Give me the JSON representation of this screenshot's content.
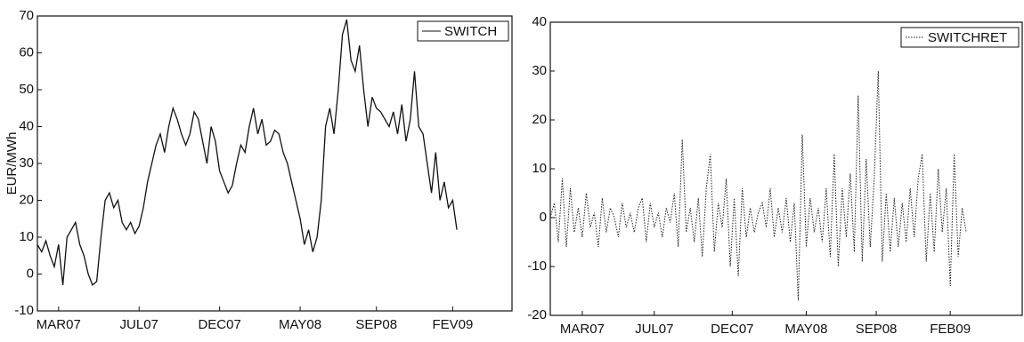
{
  "chart_data": [
    {
      "type": "line",
      "ylabel": "EUR/MWh",
      "legend": "upper right",
      "grid": false,
      "xlim": [
        0,
        112
      ],
      "xticks": [
        {
          "value": 5,
          "label": "MAR07"
        },
        {
          "value": 24,
          "label": "JUL07"
        },
        {
          "value": 43,
          "label": "DEC07"
        },
        {
          "value": 62,
          "label": "MAY08"
        },
        {
          "value": 80,
          "label": "SEP08"
        },
        {
          "value": 98,
          "label": "FEV09"
        }
      ],
      "ylim": [
        -10,
        70
      ],
      "yticks": [
        -10,
        0,
        10,
        20,
        30,
        40,
        50,
        60,
        70
      ],
      "x": [
        0,
        1,
        2,
        3,
        4,
        5,
        6,
        7,
        8,
        9,
        10,
        11,
        12,
        13,
        14,
        15,
        16,
        17,
        18,
        19,
        20,
        21,
        22,
        23,
        24,
        25,
        26,
        27,
        28,
        29,
        30,
        31,
        32,
        33,
        34,
        35,
        36,
        37,
        38,
        39,
        40,
        41,
        42,
        43,
        44,
        45,
        46,
        47,
        48,
        49,
        50,
        51,
        52,
        53,
        54,
        55,
        56,
        57,
        58,
        59,
        60,
        61,
        62,
        63,
        64,
        65,
        66,
        67,
        68,
        69,
        70,
        71,
        72,
        73,
        74,
        75,
        76,
        77,
        78,
        79,
        80,
        81,
        82,
        83,
        84,
        85,
        86,
        87,
        88,
        89,
        90,
        91,
        92,
        93,
        94,
        95,
        96,
        97,
        98,
        99
      ],
      "series": [
        {
          "name": "SWITCH",
          "color": "#111111",
          "linestyle": "solid",
          "values": [
            8,
            6,
            9,
            5,
            2,
            8,
            -3,
            10,
            12,
            14,
            8,
            5,
            0,
            -3,
            -2,
            10,
            20,
            22,
            18,
            20,
            14,
            12,
            14,
            11,
            13,
            18,
            25,
            30,
            35,
            38,
            33,
            40,
            45,
            42,
            38,
            35,
            38,
            44,
            42,
            36,
            30,
            40,
            36,
            28,
            25,
            22,
            24,
            30,
            35,
            33,
            40,
            45,
            38,
            42,
            35,
            36,
            39,
            38,
            33,
            30,
            25,
            20,
            15,
            8,
            12,
            6,
            10,
            20,
            40,
            45,
            38,
            50,
            65,
            69,
            58,
            55,
            62,
            50,
            40,
            48,
            45,
            44,
            42,
            40,
            44,
            38,
            46,
            36,
            42,
            55,
            40,
            38,
            30,
            22,
            33,
            20,
            25,
            18,
            20,
            12
          ]
        }
      ]
    },
    {
      "type": "line",
      "legend": "upper right",
      "grid": false,
      "xlim": [
        0,
        118
      ],
      "xticks": [
        {
          "value": 8,
          "label": "MAR07"
        },
        {
          "value": 26,
          "label": "JUL07"
        },
        {
          "value": 45.5,
          "label": "DEC07"
        },
        {
          "value": 64,
          "label": "MAY08"
        },
        {
          "value": 81.5,
          "label": "SEP08"
        },
        {
          "value": 100,
          "label": "FEB09"
        }
      ],
      "ylim": [
        -20,
        40
      ],
      "yticks": [
        -20,
        -10,
        0,
        10,
        20,
        30,
        40
      ],
      "x": [
        0,
        1,
        2,
        3,
        4,
        5,
        6,
        7,
        8,
        9,
        10,
        11,
        12,
        13,
        14,
        15,
        16,
        17,
        18,
        19,
        20,
        21,
        22,
        23,
        24,
        25,
        26,
        27,
        28,
        29,
        30,
        31,
        32,
        33,
        34,
        35,
        36,
        37,
        38,
        39,
        40,
        41,
        42,
        43,
        44,
        45,
        46,
        47,
        48,
        49,
        50,
        51,
        52,
        53,
        54,
        55,
        56,
        57,
        58,
        59,
        60,
        61,
        62,
        63,
        64,
        65,
        66,
        67,
        68,
        69,
        70,
        71,
        72,
        73,
        74,
        75,
        76,
        77,
        78,
        79,
        80,
        81,
        82,
        83,
        84,
        85,
        86,
        87,
        88,
        89,
        90,
        91,
        92,
        93,
        94,
        95,
        96,
        97,
        98,
        99,
        100,
        101,
        102,
        103,
        104
      ],
      "series": [
        {
          "name": "SWITCHRET",
          "color": "#222222",
          "linestyle": "dotted",
          "values": [
            0,
            3,
            -5,
            8,
            -6,
            6,
            -3,
            2,
            -4,
            5,
            -2,
            1,
            -6,
            4,
            -3,
            2,
            0,
            -4,
            3,
            -2,
            1,
            -3,
            2,
            4,
            -5,
            3,
            -2,
            1,
            -4,
            2,
            -1,
            5,
            -6,
            16,
            -3,
            2,
            -5,
            4,
            -8,
            6,
            13,
            -7,
            3,
            -2,
            8,
            -10,
            4,
            -12,
            6,
            -4,
            2,
            -3,
            1,
            3,
            -2,
            6,
            -4,
            2,
            -3,
            4,
            -5,
            3,
            -17,
            17,
            -6,
            4,
            -3,
            2,
            -5,
            6,
            -8,
            13,
            -10,
            6,
            -4,
            9,
            -7,
            25,
            -9,
            12,
            -6,
            8,
            30,
            -9,
            5,
            -7,
            4,
            -6,
            3,
            -5,
            6,
            -4,
            8,
            13,
            -9,
            5,
            -7,
            10,
            -3,
            6,
            -14,
            13,
            -8,
            2,
            -3
          ]
        }
      ]
    }
  ]
}
